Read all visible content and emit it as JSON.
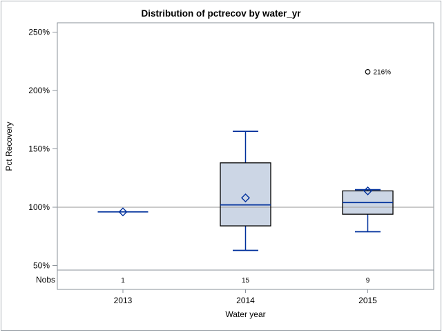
{
  "figure": {
    "title": "Distribution of pctrecov by water_yr",
    "y_axis": {
      "label": "Pct Recovery",
      "ticks": [
        {
          "value": 250,
          "label": "250%"
        },
        {
          "value": 200,
          "label": "200%"
        },
        {
          "value": 150,
          "label": "150%"
        },
        {
          "value": 100,
          "label": "100%"
        },
        {
          "value": 50,
          "label": "50%"
        }
      ]
    },
    "x_axis": {
      "label": "Water year",
      "categories": [
        "2013",
        "2014",
        "2015"
      ]
    },
    "nobs": {
      "label": "Nobs",
      "values": [
        "1",
        "15",
        "9"
      ]
    }
  },
  "chart_data": {
    "type": "box",
    "title": "Distribution of pctrecov by water_yr",
    "xlabel": "Water year",
    "ylabel": "Pct Recovery",
    "categories": [
      "2013",
      "2014",
      "2015"
    ],
    "n_obs": [
      1,
      15,
      9
    ],
    "yticks": [
      50,
      100,
      150,
      200,
      250
    ],
    "ytick_format": "percent",
    "ylim": [
      45,
      258
    ],
    "reference_line": 100,
    "grid": false,
    "legend": false,
    "mean_marker": "diamond",
    "series": [
      {
        "category": "2013",
        "n": 1,
        "min": 96,
        "q1": 96,
        "median": 96,
        "mean": 96,
        "q3": 96,
        "max": 96,
        "outliers": []
      },
      {
        "category": "2014",
        "n": 15,
        "min": 63,
        "q1": 84,
        "median": 102,
        "mean": 108,
        "q3": 138,
        "max": 165,
        "outliers": []
      },
      {
        "category": "2015",
        "n": 9,
        "min": 79,
        "q1": 94,
        "median": 104,
        "mean": 114,
        "q3": 114,
        "max": 115,
        "outliers": [
          {
            "value": 216,
            "label": "216%"
          }
        ]
      }
    ]
  },
  "colors": {
    "box_fill": "#ccd6e5",
    "box_border": "#000000",
    "whisker": "#00309c",
    "median": "#00309c",
    "mean_marker": "#00309c",
    "outlier_stroke": "#000000",
    "reference_line": "#aaaaaa",
    "frame": "#8a9199",
    "text": "#000000",
    "background": "#ffffff",
    "figure_border": "#a5abb1"
  }
}
